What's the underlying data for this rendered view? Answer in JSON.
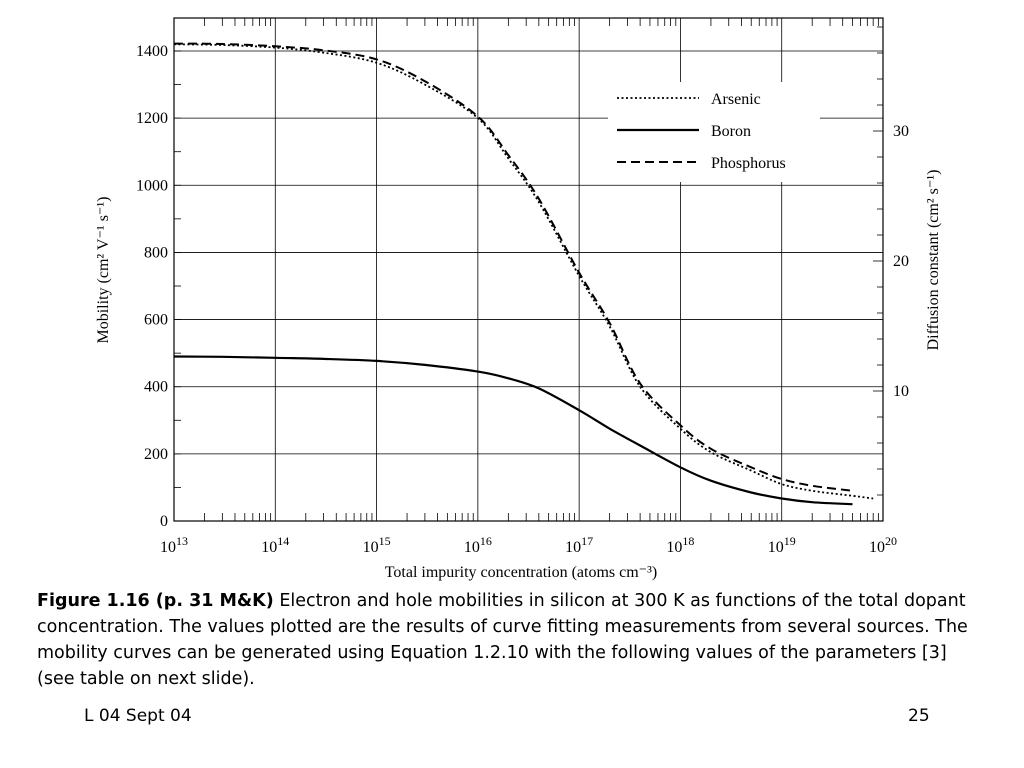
{
  "chart_data": {
    "type": "line",
    "x_scale": "log",
    "xlim": [
      10000000000000.0,
      1e+20
    ],
    "ylim": [
      0,
      1500
    ],
    "xlabel": "Total impurity concentration (atoms cm⁻³)",
    "ylabel": "Mobility (cm² V⁻¹ s⁻¹)",
    "ylabel_right": "Diffusion constant (cm² s⁻¹)",
    "y_ticks": [
      "0",
      "200",
      "400",
      "600",
      "800",
      "1000",
      "1200",
      "1400"
    ],
    "x_ticks": [
      {
        "base": "10",
        "exp": "13"
      },
      {
        "base": "10",
        "exp": "14"
      },
      {
        "base": "10",
        "exp": "15"
      },
      {
        "base": "10",
        "exp": "16"
      },
      {
        "base": "10",
        "exp": "17"
      },
      {
        "base": "10",
        "exp": "18"
      },
      {
        "base": "10",
        "exp": "19"
      },
      {
        "base": "10",
        "exp": "20"
      }
    ],
    "right_ticks": [
      {
        "label": "10",
        "value": 10
      },
      {
        "label": "20",
        "value": 20
      },
      {
        "label": "30",
        "value": 30
      }
    ],
    "grid": true,
    "legend_position": "top-right",
    "series": [
      {
        "name": "Arsenic",
        "style": "dotted",
        "x": [
          10000000000000.0,
          30000000000000.0,
          100000000000000.0,
          300000000000000.0,
          1000000000000000.0,
          3000000000000000.0,
          1e+16,
          2e+16,
          4e+16,
          1e+17,
          2e+17,
          4e+17,
          1e+18,
          2e+18,
          5e+18,
          1e+19,
          2e+19,
          5e+19,
          8e+19
        ],
        "y": [
          1420,
          1418,
          1410,
          1395,
          1365,
          1300,
          1200,
          1080,
          950,
          730,
          580,
          400,
          275,
          205,
          150,
          110,
          90,
          75,
          67
        ]
      },
      {
        "name": "Boron",
        "style": "solid",
        "x": [
          10000000000000.0,
          30000000000000.0,
          100000000000000.0,
          300000000000000.0,
          1000000000000000.0,
          3000000000000000.0,
          1e+16,
          2e+16,
          4e+16,
          1e+17,
          2e+17,
          4e+17,
          1e+18,
          2e+18,
          5e+18,
          1e+19,
          2e+19,
          5e+19
        ],
        "y": [
          490,
          489,
          486,
          483,
          477,
          465,
          445,
          425,
          395,
          330,
          275,
          225,
          160,
          120,
          85,
          67,
          56,
          50
        ]
      },
      {
        "name": "Phosphorus",
        "style": "dashed",
        "x": [
          10000000000000.0,
          30000000000000.0,
          100000000000000.0,
          300000000000000.0,
          1000000000000000.0,
          3000000000000000.0,
          1e+16,
          2e+16,
          4e+16,
          1e+17,
          2e+17,
          4e+17,
          1e+18,
          2e+18,
          5e+18,
          1e+19,
          2e+19,
          5e+19
        ],
        "y": [
          1422,
          1421,
          1414,
          1402,
          1375,
          1310,
          1205,
          1090,
          960,
          740,
          590,
          410,
          285,
          215,
          160,
          125,
          105,
          90
        ]
      }
    ]
  },
  "caption": {
    "lead": "Figure 1.16  (p. 31 M&K)",
    "body": " Electron and hole mobilities in silicon at 300 K as functions of the total dopant concentration. The values plotted are the results of curve fitting measurements from several sources. The mobility curves can be generated using Equation 1.2.10 with the following values of the parameters [3] (see table on next slide)."
  },
  "footer": {
    "left": "L 04 Sept 04",
    "right": "25"
  }
}
